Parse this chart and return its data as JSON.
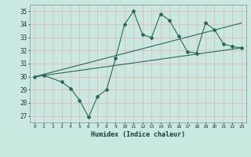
{
  "xlabel": "Humidex (Indice chaleur)",
  "ylabel": "",
  "bg_color": "#c8e8e0",
  "grid_color": "#e8b0b0",
  "line_color": "#2a6858",
  "xlim": [
    -0.5,
    23.5
  ],
  "ylim": [
    26.5,
    35.5
  ],
  "xticks": [
    0,
    1,
    2,
    3,
    4,
    5,
    6,
    7,
    8,
    9,
    10,
    11,
    12,
    13,
    14,
    15,
    16,
    17,
    18,
    19,
    20,
    21,
    22,
    23
  ],
  "yticks": [
    27,
    28,
    29,
    30,
    31,
    32,
    33,
    34,
    35
  ],
  "data_line": {
    "x": [
      0,
      1,
      3,
      4,
      5,
      6,
      7,
      8,
      9,
      10,
      11,
      12,
      13,
      14,
      15,
      16,
      17,
      18,
      19,
      20,
      21,
      22,
      23
    ],
    "y": [
      30.0,
      30.1,
      29.6,
      29.1,
      28.2,
      26.9,
      28.5,
      29.0,
      31.4,
      34.0,
      35.0,
      33.2,
      33.0,
      34.8,
      34.3,
      33.1,
      31.9,
      31.8,
      34.1,
      33.6,
      32.5,
      32.3,
      32.2
    ]
  },
  "upper_line": {
    "x": [
      0,
      23
    ],
    "y": [
      30.0,
      34.1
    ]
  },
  "lower_line": {
    "x": [
      0,
      23
    ],
    "y": [
      30.0,
      32.2
    ]
  }
}
